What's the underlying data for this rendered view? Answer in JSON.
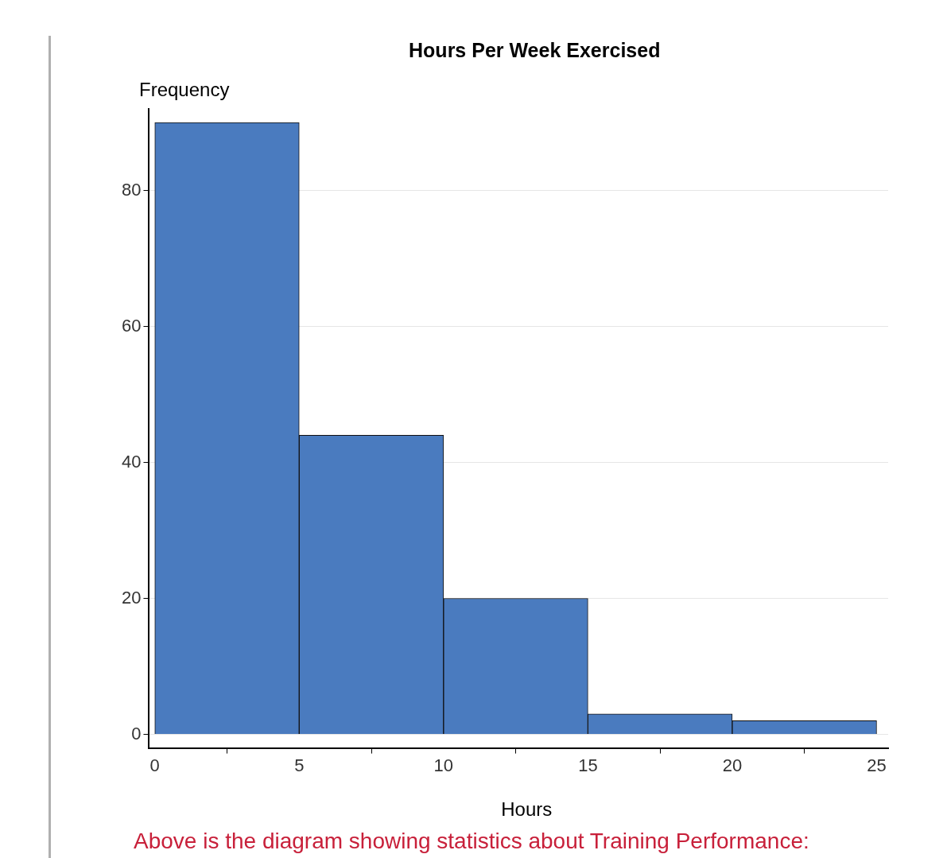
{
  "chart_data": {
    "type": "histogram",
    "title": "Hours Per Week Exercised",
    "xlabel": "Hours",
    "ylabel": "Frequency",
    "bins": [
      0,
      5,
      10,
      15,
      20,
      25
    ],
    "values": [
      90,
      44,
      20,
      3,
      2
    ],
    "color": "#4a7bbf",
    "xlim": [
      -0.2,
      25.4
    ],
    "xticks": [
      0,
      5,
      10,
      15,
      20,
      25
    ],
    "ylim": [
      -2,
      92
    ],
    "yticks": [
      0,
      20,
      40,
      60,
      80
    ],
    "grid": "y",
    "legend": false,
    "annotations": [
      "Above is the diagram showing statistics about Training Performance:"
    ]
  }
}
